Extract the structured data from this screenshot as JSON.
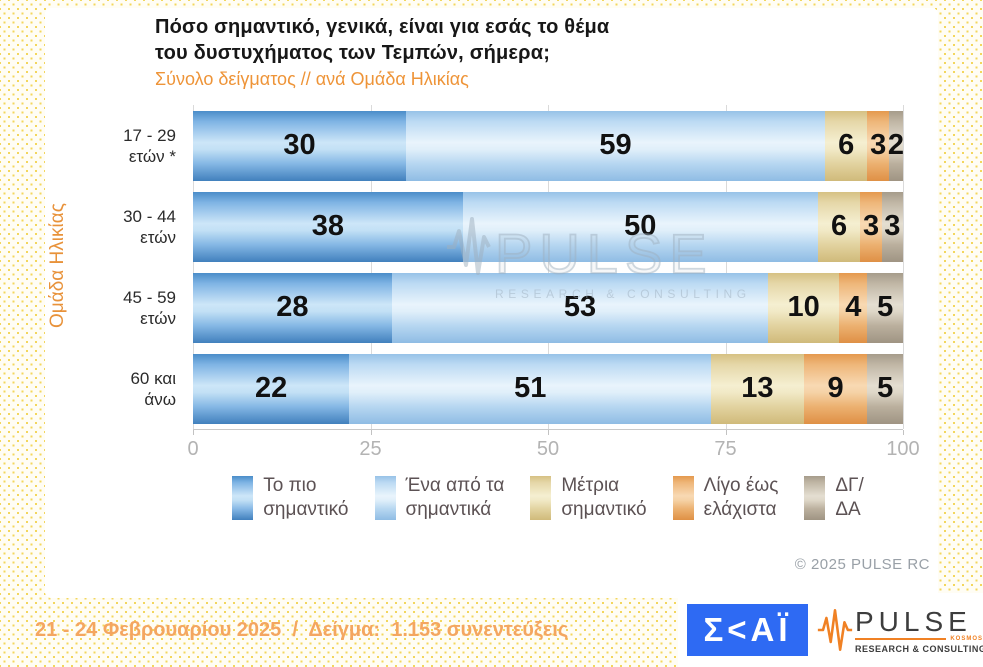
{
  "title": {
    "line1": "Πόσο σημαντικό, γενικά, είναι για εσάς το θέμα",
    "line2": "του δυστυχήματος των Τεμπών, σήμερα;"
  },
  "subtitle": "Σύνολο δείγματος // ανά Ομάδα Ηλικίας",
  "y_axis_title": "Ομάδα Ηλικίας",
  "chart_data": {
    "type": "bar",
    "orientation": "horizontal",
    "stacked": true,
    "categories": [
      "17 - 29 ετών *",
      "30 - 44 ετών",
      "45 - 59 ετών",
      "60 και άνω"
    ],
    "categories_lines": [
      [
        "17 - 29",
        "ετών *"
      ],
      [
        "30 - 44",
        "ετών"
      ],
      [
        "45 - 59",
        "ετών"
      ],
      [
        "60 και",
        "άνω"
      ]
    ],
    "series": [
      {
        "name": "Το πιο σημαντικό",
        "color": "#4a8dc9",
        "values": [
          30,
          38,
          28,
          22
        ]
      },
      {
        "name": "Ένα από τα σημαντικά",
        "color": "#bcdaf3",
        "values": [
          59,
          50,
          53,
          51
        ]
      },
      {
        "name": "Μέτρια σημαντικό",
        "color": "#e5d7a8",
        "values": [
          6,
          6,
          10,
          13
        ]
      },
      {
        "name": "Λίγο έως ελάχιστα",
        "color": "#eeb679",
        "values": [
          3,
          3,
          4,
          9
        ]
      },
      {
        "name": "ΔΓ/ΔΑ",
        "color": "#c0b6a5",
        "values": [
          2,
          3,
          5,
          5
        ]
      }
    ],
    "x_ticks": [
      0,
      25,
      50,
      75,
      100
    ],
    "xlim": [
      0,
      100
    ],
    "grid": true,
    "legend_position": "bottom"
  },
  "legend": {
    "items": [
      {
        "line1": "Το πιο",
        "line2": "σημαντικό"
      },
      {
        "line1": "Ένα από τα",
        "line2": "σημαντικά"
      },
      {
        "line1": "Μέτρια",
        "line2": "σημαντικό"
      },
      {
        "line1": "Λίγο έως",
        "line2": "ελάχιστα"
      },
      {
        "line1": "ΔΓ/",
        "line2": "ΔΑ"
      }
    ]
  },
  "watermark": {
    "name": "PULSE",
    "tagline": "RESEARCH & CONSULTING"
  },
  "copyright": "© 2025 PULSE RC",
  "footer": {
    "text": "21 - 24 Φεβρουαρίου 2025  /  Δείγμα:  1.153 συνεντεύξεις"
  },
  "logos": {
    "skai_text": "Σ<ΑΪ",
    "pulse": {
      "name": "PULSE",
      "group": "KOSMOS",
      "tagline": "RESEARCH & CONSULTING"
    }
  },
  "colors": {
    "accent_orange": "#ee9438",
    "footer_orange": "#f4a660",
    "skai_blue": "#2e6af3",
    "pulse_orange": "#f08124",
    "tick_gray": "#b3b3b3",
    "legend_text": "#5c5254"
  }
}
